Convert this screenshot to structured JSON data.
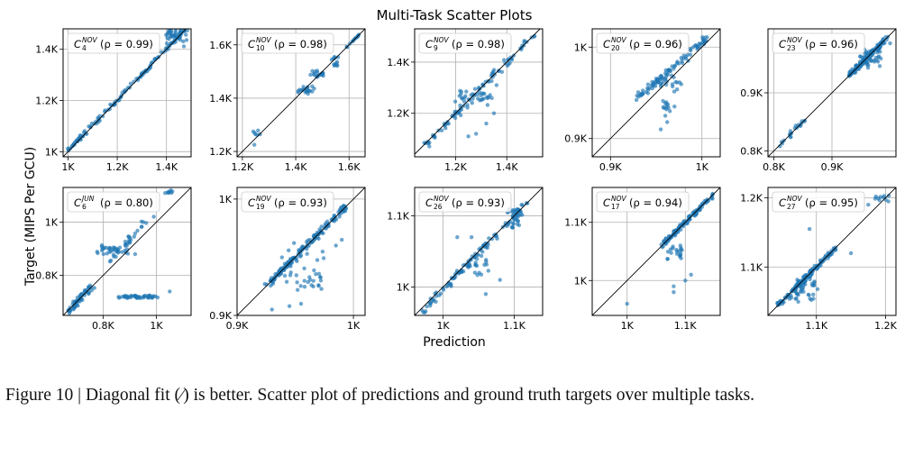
{
  "figure": {
    "title": "Multi-Task Scatter Plots",
    "xlabel": "Prediction",
    "ylabel": "Target (MIPS Per GCU)",
    "caption": "Figure 10 | Diagonal fit (∕) is better. Scatter plot of predictions and ground truth targets over multiple tasks."
  },
  "colors": {
    "points": "#1f77b4",
    "diagonal": "#000000",
    "grid": "#b0b0b0"
  },
  "chart_data": [
    {
      "type": "scatter",
      "task": "C",
      "sup": "NOV",
      "sub": "4",
      "rho": "0.99",
      "xlim": [
        980,
        1500
      ],
      "ylim": [
        980,
        1480
      ],
      "xticks": [
        1000,
        1200,
        1400
      ],
      "xticklabels": [
        "1K",
        "1.2K",
        "1.4K"
      ],
      "yticks": [
        1000,
        1200,
        1400
      ],
      "yticklabels": [
        "1K",
        "1.2K",
        "1.4K"
      ],
      "segments": [
        [
          1000,
          1005,
          1480,
          1480,
          120,
          0.012
        ]
      ],
      "clusters": [
        [
          1400,
          1410,
          1480,
          1480,
          40,
          0.01
        ]
      ],
      "outliers": []
    },
    {
      "type": "scatter",
      "task": "C",
      "sup": "NOV",
      "sub": "10",
      "rho": "0.98",
      "xlim": [
        1180,
        1660
      ],
      "ylim": [
        1180,
        1660
      ],
      "xticks": [
        1200,
        1400,
        1600
      ],
      "xticklabels": [
        "1.2K",
        "1.4K",
        "1.6K"
      ],
      "yticks": [
        1200,
        1400,
        1600
      ],
      "yticklabels": [
        "1.2K",
        "1.4K",
        "1.6K"
      ],
      "segments": [
        [
          1590,
          1590,
          1640,
          1640,
          12,
          0.004
        ]
      ],
      "clusters": [
        [
          1240,
          1255,
          1270,
          1275,
          6,
          0.01
        ],
        [
          1450,
          1480,
          1510,
          1500,
          18,
          0.012
        ],
        [
          1410,
          1420,
          1470,
          1440,
          20,
          0.012
        ],
        [
          1530,
          1520,
          1560,
          1560,
          12,
          0.01
        ]
      ],
      "outliers": [
        [
          1245,
          1225
        ]
      ]
    },
    {
      "type": "scatter",
      "task": "C",
      "sup": "NOV",
      "sub": "9",
      "rho": "0.98",
      "xlim": [
        1040,
        1540
      ],
      "ylim": [
        1030,
        1530
      ],
      "xticks": [
        1200,
        1400
      ],
      "xticklabels": [
        "1.2K",
        "1.4K"
      ],
      "yticks": [
        1200,
        1400
      ],
      "yticklabels": [
        "1.2K",
        "1.4K"
      ],
      "segments": [
        [
          1080,
          1075,
          1500,
          1500,
          90,
          0.025
        ]
      ],
      "clusters": [
        [
          1300,
          1220,
          1330,
          1290,
          16,
          0.04
        ],
        [
          1200,
          1240,
          1260,
          1280,
          12,
          0.03
        ]
      ],
      "outliers": [
        [
          1420,
          1410
        ],
        [
          1360,
          1310
        ],
        [
          1320,
          1160
        ],
        [
          1350,
          1200
        ],
        [
          1280,
          1120
        ],
        [
          1250,
          1110
        ]
      ]
    },
    {
      "type": "scatter",
      "task": "C",
      "sup": "NOV",
      "sub": "20",
      "rho": "0.96",
      "xlim": [
        880,
        1020
      ],
      "ylim": [
        880,
        1020
      ],
      "xticks": [
        900,
        1000
      ],
      "xticklabels": [
        "0.9K",
        "1K"
      ],
      "yticks": [
        900,
        1000
      ],
      "yticklabels": [
        "0.9K",
        "1K"
      ],
      "segments": [
        [
          930,
          945,
          1005,
          1010,
          90,
          0.022
        ]
      ],
      "clusters": [
        [
          955,
          930,
          965,
          945,
          10,
          0.02
        ],
        [
          950,
          955,
          975,
          970,
          20,
          0.03
        ]
      ],
      "outliers": [
        [
          985,
          985
        ],
        [
          960,
          925
        ],
        [
          965,
          930
        ],
        [
          970,
          935
        ],
        [
          962,
          918
        ],
        [
          955,
          910
        ]
      ]
    },
    {
      "type": "scatter",
      "task": "C",
      "sup": "NOV",
      "sub": "23",
      "rho": "0.96",
      "xlim": [
        790,
        1010
      ],
      "ylim": [
        790,
        1010
      ],
      "xticks": [
        800,
        900
      ],
      "xticklabels": [
        "0.8K",
        "0.9K"
      ],
      "yticks": [
        800,
        900
      ],
      "yticklabels": [
        "0.8K",
        "0.9K"
      ],
      "segments": [
        [
          805,
          805,
          855,
          855,
          20,
          0.015
        ],
        [
          930,
          930,
          995,
          995,
          120,
          0.015
        ]
      ],
      "clusters": [
        [
          950,
          945,
          985,
          975,
          40,
          0.02
        ]
      ],
      "outliers": [
        [
          1000,
          985
        ]
      ]
    },
    {
      "type": "scatter",
      "task": "C",
      "sup": "JUN",
      "sub": "6",
      "rho": "0.80",
      "xlim": [
        650,
        1130
      ],
      "ylim": [
        650,
        1130
      ],
      "xticks": [
        800,
        1000
      ],
      "xticklabels": [
        "0.8K",
        "1K"
      ],
      "yticks": [
        800,
        1000
      ],
      "yticklabels": [
        "0.8K",
        "1K"
      ],
      "segments": [
        [
          670,
          665,
          760,
          760,
          60,
          0.02
        ],
        [
          860,
          720,
          1010,
          720,
          45,
          0.01
        ],
        [
          830,
          860,
          960,
          1000,
          30,
          0.03
        ]
      ],
      "clusters": [
        [
          780,
          890,
          900,
          900,
          30,
          0.03
        ],
        [
          1030,
          1110,
          1060,
          1120,
          8,
          0.01
        ]
      ],
      "outliers": [
        [
          1050,
          740
        ],
        [
          920,
          880
        ],
        [
          990,
          1020
        ]
      ]
    },
    {
      "type": "scatter",
      "task": "C",
      "sup": "NOV",
      "sub": "19",
      "rho": "0.93",
      "xlim": [
        900,
        1010
      ],
      "ylim": [
        900,
        1010
      ],
      "xticks": [
        900,
        1000
      ],
      "xticklabels": [
        "0.9K",
        "1K"
      ],
      "yticks": [
        900,
        1000
      ],
      "yticklabels": [
        "0.9K",
        "1K"
      ],
      "segments": [
        [
          925,
          925,
          995,
          995,
          150,
          0.02
        ]
      ],
      "clusters": [
        [
          940,
          920,
          975,
          960,
          40,
          0.03
        ]
      ],
      "outliers": [
        [
          945,
          908
        ],
        [
          955,
          910
        ],
        [
          930,
          905
        ],
        [
          985,
          960
        ],
        [
          990,
          965
        ]
      ]
    },
    {
      "type": "scatter",
      "task": "C",
      "sup": "NOV",
      "sub": "26",
      "rho": "0.93",
      "xlim": [
        960,
        1140
      ],
      "ylim": [
        960,
        1140
      ],
      "xticks": [
        1000,
        1100
      ],
      "xticklabels": [
        "1K",
        "1.1K"
      ],
      "yticks": [
        1000,
        1100
      ],
      "yticklabels": [
        "1K",
        "1.1K"
      ],
      "segments": [
        [
          970,
          965,
          1120,
          1120,
          110,
          0.02
        ]
      ],
      "clusters": [
        [
          1090,
          1080,
          1110,
          1110,
          30,
          0.02
        ],
        [
          1040,
          1010,
          1070,
          1040,
          15,
          0.03
        ]
      ],
      "outliers": [
        [
          1060,
          1060
        ],
        [
          1040,
          1070
        ],
        [
          1020,
          1070
        ],
        [
          1060,
          990
        ],
        [
          1080,
          1010
        ]
      ]
    },
    {
      "type": "scatter",
      "task": "C",
      "sup": "NOV",
      "sub": "17",
      "rho": "0.94",
      "xlim": [
        940,
        1160
      ],
      "ylim": [
        940,
        1160
      ],
      "xticks": [
        1000,
        1100
      ],
      "xticklabels": [
        "1K",
        "1.1K"
      ],
      "yticks": [
        1000,
        1100
      ],
      "yticklabels": [
        "1K",
        "1.1K"
      ],
      "segments": [
        [
          1060,
          1060,
          1150,
          1150,
          110,
          0.015
        ]
      ],
      "clusters": [
        [
          1070,
          1040,
          1100,
          1060,
          20,
          0.03
        ]
      ],
      "outliers": [
        [
          1080,
          990
        ],
        [
          1080,
          980
        ],
        [
          1110,
          1010
        ],
        [
          1100,
          1000
        ],
        [
          1000,
          960
        ]
      ]
    },
    {
      "type": "scatter",
      "task": "C",
      "sup": "NOV",
      "sub": "27",
      "rho": "0.95",
      "xlim": [
        1030,
        1215
      ],
      "ylim": [
        1030,
        1215
      ],
      "xticks": [
        1100,
        1200
      ],
      "xticklabels": [
        "1.1K",
        "1.2K"
      ],
      "yticks": [
        1100,
        1200
      ],
      "yticklabels": [
        "1.1K",
        "1.2K"
      ],
      "segments": [
        [
          1045,
          1045,
          1130,
          1130,
          140,
          0.015
        ]
      ],
      "clusters": [
        [
          1060,
          1050,
          1100,
          1080,
          40,
          0.02
        ],
        [
          1185,
          1195,
          1205,
          1205,
          10,
          0.008
        ]
      ],
      "outliers": [
        [
          1175,
          1190
        ],
        [
          1150,
          1120
        ],
        [
          1090,
          1155
        ]
      ]
    }
  ]
}
